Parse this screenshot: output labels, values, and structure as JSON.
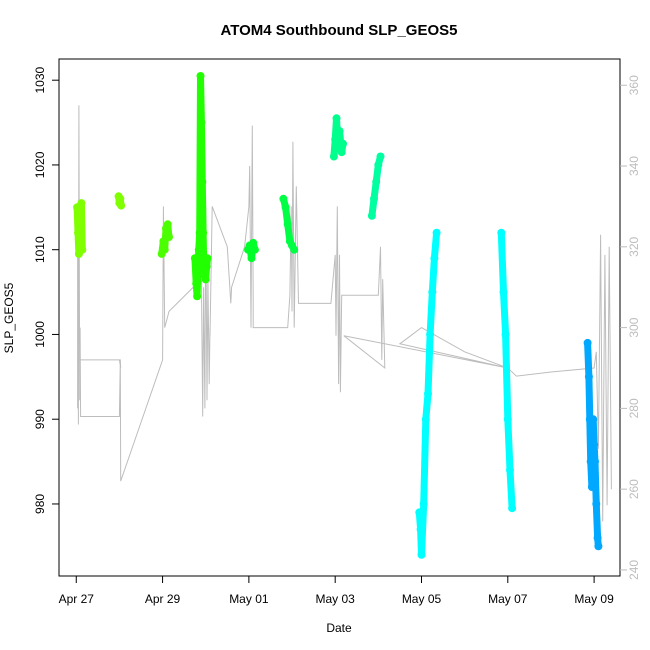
{
  "chart_data": {
    "type": "scatter",
    "title": "ATOM4 Southbound SLP_GEOS5",
    "xlabel": "Date",
    "ylabel": "SLP_GEOS5",
    "x_unit": "days since Apr 27",
    "xlim": [
      -0.4,
      12.6
    ],
    "ylim": [
      971.5,
      1032.5
    ],
    "y2lim": [
      238.5,
      366.5
    ],
    "x_ticks": [
      {
        "x": 0,
        "label": "Apr 27"
      },
      {
        "x": 2,
        "label": "Apr 29"
      },
      {
        "x": 4,
        "label": "May 01"
      },
      {
        "x": 6,
        "label": "May 03"
      },
      {
        "x": 8,
        "label": "May 05"
      },
      {
        "x": 10,
        "label": "May 07"
      },
      {
        "x": 12,
        "label": "May 09"
      }
    ],
    "y_ticks": [
      980,
      990,
      1000,
      1010,
      1020,
      1030
    ],
    "y2_ticks": [
      240,
      260,
      280,
      300,
      320,
      340,
      360
    ],
    "grid": false,
    "legend": "none",
    "track_color": "#bdbdbd",
    "track_series": {
      "name": "secondary axis trace",
      "points": [
        [
          0.03,
          280
        ],
        [
          0.03,
          330
        ],
        [
          0.05,
          276
        ],
        [
          0.06,
          355
        ],
        [
          0.08,
          282
        ],
        [
          0.09,
          300
        ],
        [
          0.1,
          278
        ],
        [
          1.0,
          278
        ],
        [
          1.02,
          292
        ],
        [
          1.03,
          290
        ],
        [
          1.0,
          292
        ],
        [
          0.03,
          292
        ],
        [
          1.02,
          292
        ],
        [
          1.03,
          262
        ],
        [
          2.0,
          292
        ],
        [
          2.02,
          330
        ],
        [
          2.05,
          300
        ],
        [
          2.1,
          302
        ],
        [
          2.15,
          304
        ],
        [
          2.9,
          312
        ],
        [
          2.93,
          278
        ],
        [
          2.95,
          310
        ],
        [
          2.98,
          280
        ],
        [
          3.0,
          330
        ],
        [
          3.03,
          282
        ],
        [
          3.05,
          312
        ],
        [
          3.08,
          286
        ],
        [
          3.1,
          300
        ],
        [
          3.1,
          298
        ],
        [
          3.15,
          330
        ],
        [
          3.5,
          320
        ],
        [
          3.58,
          306
        ],
        [
          3.6,
          310
        ],
        [
          3.9,
          320
        ],
        [
          4.0,
          330
        ],
        [
          4.02,
          340
        ],
        [
          4.05,
          300
        ],
        [
          4.08,
          350
        ],
        [
          4.1,
          306
        ],
        [
          4.1,
          300
        ],
        [
          4.5,
          300
        ],
        [
          4.9,
          300
        ],
        [
          4.95,
          308
        ],
        [
          4.98,
          330
        ],
        [
          5.0,
          304
        ],
        [
          5.02,
          346
        ],
        [
          5.05,
          300
        ],
        [
          5.1,
          335
        ],
        [
          5.15,
          306
        ],
        [
          5.9,
          306
        ],
        [
          6.0,
          318
        ],
        [
          6.02,
          298
        ],
        [
          6.05,
          330
        ],
        [
          6.08,
          286
        ],
        [
          6.1,
          318
        ],
        [
          6.12,
          284
        ],
        [
          6.15,
          308
        ],
        [
          7.0,
          308
        ],
        [
          7.05,
          320
        ],
        [
          7.08,
          292
        ],
        [
          7.1,
          312
        ],
        [
          7.15,
          290
        ],
        [
          6.2,
          298
        ],
        [
          10.0,
          290
        ],
        [
          7.5,
          296
        ],
        [
          8.0,
          300
        ],
        [
          9.0,
          294
        ],
        [
          10.0,
          290
        ],
        [
          10.2,
          288
        ],
        [
          11.0,
          289
        ],
        [
          12.0,
          290
        ],
        [
          12.05,
          294
        ],
        [
          12.1,
          270
        ],
        [
          12.15,
          323
        ],
        [
          12.2,
          252
        ],
        [
          12.25,
          318
        ],
        [
          12.3,
          256
        ],
        [
          12.35,
          320
        ],
        [
          12.4,
          260
        ]
      ]
    },
    "series": [
      {
        "color": "#7fff00",
        "points": [
          [
            0.02,
            1015
          ],
          [
            0.04,
            1012
          ],
          [
            0.06,
            1009.5
          ],
          [
            0.08,
            1014
          ],
          [
            0.1,
            1011
          ],
          [
            0.12,
            1015.5
          ],
          [
            0.14,
            1010
          ],
          [
            0.1,
            1012
          ]
        ]
      },
      {
        "color": "#7fff00",
        "points": [
          [
            0.98,
            1016.3
          ],
          [
            1.0,
            1015.5
          ],
          [
            1.02,
            1016
          ],
          [
            1.04,
            1015.2
          ]
        ]
      },
      {
        "color": "#4cff00",
        "points": [
          [
            1.98,
            1009.5
          ],
          [
            2.02,
            1011
          ],
          [
            2.05,
            1010
          ],
          [
            2.08,
            1012.5
          ],
          [
            2.12,
            1013
          ],
          [
            2.15,
            1011.5
          ]
        ]
      },
      {
        "color": "#22ff00",
        "points": [
          [
            2.75,
            1009
          ],
          [
            2.78,
            1006
          ],
          [
            2.8,
            1004.5
          ],
          [
            2.82,
            1008
          ],
          [
            2.84,
            1010
          ],
          [
            2.86,
            1012
          ],
          [
            2.88,
            1030.5
          ],
          [
            2.9,
            1025
          ],
          [
            2.92,
            1018
          ],
          [
            2.94,
            1012
          ],
          [
            2.96,
            1007
          ],
          [
            2.98,
            1009
          ],
          [
            3.0,
            1006.5
          ],
          [
            3.02,
            1008
          ],
          [
            3.04,
            1009
          ]
        ]
      },
      {
        "color": "#00ff2a",
        "points": [
          [
            3.98,
            1010
          ],
          [
            4.02,
            1010.5
          ],
          [
            4.06,
            1009
          ],
          [
            4.1,
            1010.8
          ],
          [
            4.14,
            1010
          ]
        ]
      },
      {
        "color": "#00ff44",
        "points": [
          [
            4.8,
            1016
          ],
          [
            4.85,
            1015
          ],
          [
            4.9,
            1013
          ],
          [
            4.95,
            1011
          ],
          [
            5.0,
            1010.5
          ],
          [
            5.05,
            1010
          ]
        ]
      },
      {
        "color": "#00ff8c",
        "points": [
          [
            5.97,
            1021
          ],
          [
            6.0,
            1023
          ],
          [
            6.03,
            1025.5
          ],
          [
            6.07,
            1022
          ],
          [
            6.1,
            1024
          ],
          [
            6.15,
            1021.5
          ],
          [
            6.18,
            1022.5
          ]
        ]
      },
      {
        "color": "#00ffa0",
        "points": [
          [
            6.85,
            1014
          ],
          [
            6.9,
            1016
          ],
          [
            6.95,
            1018
          ],
          [
            7.0,
            1020
          ],
          [
            7.05,
            1021
          ]
        ]
      },
      {
        "color": "#00ffff",
        "points": [
          [
            7.95,
            979
          ],
          [
            7.98,
            977
          ],
          [
            8.0,
            974
          ],
          [
            8.05,
            980
          ],
          [
            8.1,
            990
          ],
          [
            8.15,
            993
          ],
          [
            8.2,
            1000
          ],
          [
            8.25,
            1005
          ],
          [
            8.3,
            1009
          ],
          [
            8.35,
            1012
          ]
        ]
      },
      {
        "color": "#00ffff",
        "points": [
          [
            9.85,
            1012
          ],
          [
            9.9,
            1005
          ],
          [
            9.95,
            1000
          ],
          [
            10.0,
            990
          ],
          [
            10.05,
            984
          ],
          [
            10.1,
            979.5
          ]
        ]
      },
      {
        "color": "#00a8ff",
        "points": [
          [
            11.85,
            999
          ],
          [
            11.88,
            995
          ],
          [
            11.9,
            990
          ],
          [
            11.92,
            985
          ],
          [
            11.95,
            982
          ],
          [
            11.98,
            990
          ],
          [
            12.0,
            987
          ],
          [
            12.02,
            985
          ],
          [
            12.05,
            980
          ],
          [
            12.08,
            976
          ],
          [
            12.1,
            975
          ]
        ]
      }
    ]
  }
}
